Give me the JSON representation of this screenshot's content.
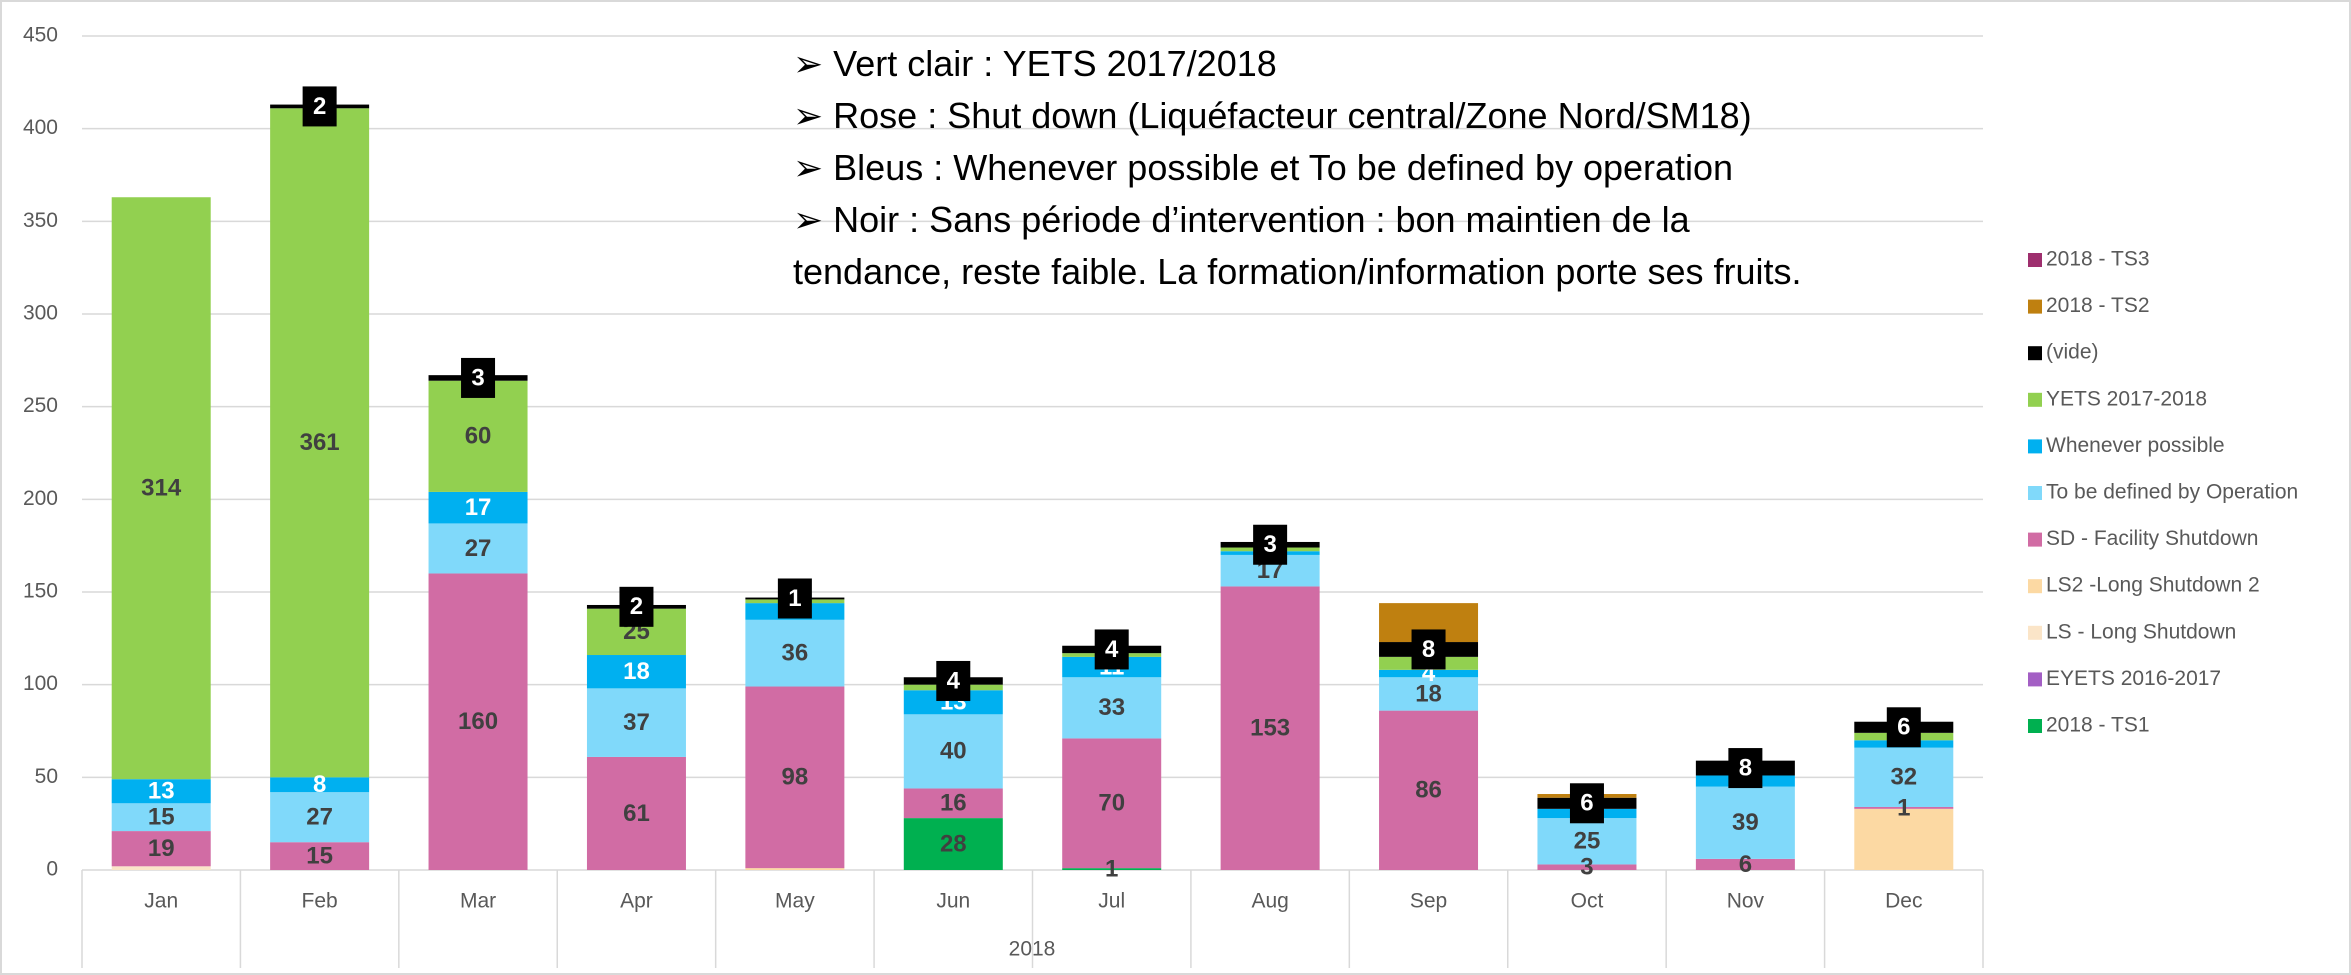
{
  "chart_data": {
    "type": "stacked_bar",
    "x_label": "2018",
    "notes": [
      "➢ Vert clair : YETS 2017/2018",
      "➢ Rose : Shut down (Liquéfacteur central/Zone Nord/SM18)",
      "➢ Bleus : Whenever possible et To be defined by operation",
      "➢ Noir : Sans période d’intervention : bon maintien de la tendance, reste faible. La formation/information porte ses fruits."
    ],
    "categories": [
      "Jan",
      "Feb",
      "Mar",
      "Apr",
      "May",
      "Jun",
      "Jul",
      "Aug",
      "Sep",
      "Oct",
      "Nov",
      "Dec"
    ],
    "ylim": [
      0,
      450
    ],
    "yticks": [
      0,
      50,
      100,
      150,
      200,
      250,
      300,
      350,
      400,
      450
    ],
    "grid": true,
    "legend": "right",
    "series": [
      {
        "name": "2018 - TS1",
        "color": "#00b050",
        "label_color": "#404040",
        "values": [
          0,
          0,
          0,
          0,
          0,
          28,
          1,
          0,
          0,
          0,
          0,
          0
        ],
        "value_labels": [
          null,
          null,
          null,
          null,
          null,
          "28",
          "1",
          null,
          null,
          null,
          null,
          null
        ]
      },
      {
        "name": "EYETS 2016-2017",
        "color": "#a35fc4",
        "label_color": "#404040",
        "values": [
          0,
          0,
          0,
          0,
          0,
          0,
          0,
          0,
          0,
          0,
          0,
          0
        ],
        "value_labels": [
          null,
          null,
          null,
          null,
          null,
          null,
          null,
          null,
          null,
          null,
          null,
          null
        ]
      },
      {
        "name": "LS - Long Shutdown",
        "color": "#fbe5c8",
        "label_color": "#404040",
        "values": [
          2,
          0,
          0,
          0,
          0,
          0,
          0,
          0,
          0,
          0,
          0,
          0
        ],
        "value_labels": [
          null,
          null,
          null,
          null,
          null,
          null,
          null,
          null,
          null,
          null,
          null,
          null
        ]
      },
      {
        "name": "LS2 -Long Shutdown 2",
        "color": "#fcd9a3",
        "label_color": "#404040",
        "values": [
          0,
          0,
          0,
          0,
          1,
          0,
          0,
          0,
          0,
          0,
          0,
          33
        ],
        "value_labels": [
          null,
          null,
          null,
          null,
          null,
          null,
          null,
          null,
          null,
          null,
          null,
          null
        ]
      },
      {
        "name": "SD - Facility Shutdown",
        "color": "#d16ca4",
        "label_color": "#404040",
        "values": [
          19,
          15,
          160,
          61,
          98,
          16,
          70,
          153,
          86,
          3,
          6,
          1
        ],
        "value_labels": [
          "19",
          "15",
          "160",
          "61",
          "98",
          "16",
          "70",
          "153",
          "86",
          "3",
          "6",
          "1"
        ]
      },
      {
        "name": "To be defined by Operation",
        "color": "#80d9fa",
        "label_color": "#404040",
        "values": [
          15,
          27,
          27,
          37,
          36,
          40,
          33,
          17,
          18,
          25,
          39,
          32
        ],
        "value_labels": [
          "15",
          "27",
          "27",
          "37",
          "36",
          "40",
          "33",
          "17",
          "18",
          "25",
          "39",
          "32"
        ]
      },
      {
        "name": "Whenever possible",
        "color": "#00b0f0",
        "label_color": "#ffffff",
        "values": [
          13,
          8,
          17,
          18,
          9,
          13,
          11,
          2,
          4,
          5,
          6,
          4
        ],
        "value_labels": [
          "13",
          "8",
          "17",
          "18",
          null,
          "13",
          "11",
          null,
          "4",
          null,
          null,
          null
        ]
      },
      {
        "name": "YETS 2017-2018",
        "color": "#92d050",
        "label_color": "#404040",
        "values": [
          314,
          361,
          60,
          25,
          2,
          3,
          2,
          2,
          7,
          0,
          0,
          4
        ],
        "value_labels": [
          "314",
          "361",
          "60",
          "25",
          null,
          null,
          null,
          null,
          null,
          null,
          null,
          null
        ]
      },
      {
        "name": "(vide)",
        "color": "#000000",
        "label_color": "#ffffff",
        "boxed": true,
        "values": [
          0,
          2,
          3,
          2,
          1,
          4,
          4,
          3,
          8,
          6,
          8,
          6
        ],
        "value_labels": [
          null,
          "2",
          "3",
          "2",
          "1",
          "4",
          "4",
          "3",
          "8",
          "6",
          "8",
          "6"
        ]
      },
      {
        "name": "2018 - TS2",
        "color": "#bf8010",
        "label_color": "#404040",
        "values": [
          0,
          0,
          0,
          0,
          0,
          0,
          0,
          0,
          21,
          2,
          0,
          0
        ],
        "value_labels": [
          null,
          null,
          null,
          null,
          null,
          null,
          null,
          null,
          null,
          null,
          null,
          null
        ]
      },
      {
        "name": "2018 - TS3",
        "color": "#9e2f6e",
        "label_color": "#404040",
        "values": [
          0,
          0,
          0,
          0,
          0,
          0,
          0,
          0,
          0,
          0,
          0,
          0
        ],
        "value_labels": [
          null,
          null,
          null,
          null,
          null,
          null,
          null,
          null,
          null,
          null,
          null,
          null
        ]
      }
    ]
  }
}
